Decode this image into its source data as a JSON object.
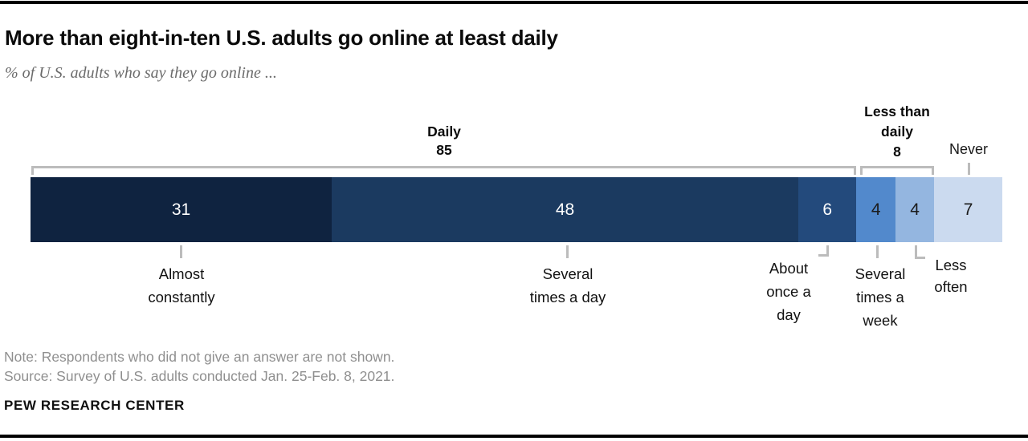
{
  "meta": {
    "title": "More than eight-in-ten U.S. adults go online at least daily",
    "subtitle": "% of U.S. adults who say they go online ...",
    "note": "Note: Respondents who did not give an answer are not shown.",
    "source": "Source: Survey of U.S. adults conducted Jan. 25-Feb. 8, 2021.",
    "brand": "PEW RESEARCH CENTER"
  },
  "chart_data": {
    "type": "bar",
    "variant": "horizontal-stacked-100",
    "title": "More than eight-in-ten U.S. adults go online at least daily",
    "subtitle": "% of U.S. adults who say they go online ...",
    "unit": "percent of U.S. adults",
    "xlim": [
      0,
      100
    ],
    "grid": false,
    "legend": "none",
    "categories": [
      "Almost constantly",
      "Several times a day",
      "About once a day",
      "Several times a week",
      "Less often",
      "Never"
    ],
    "values": [
      31,
      48,
      6,
      4,
      4,
      7
    ],
    "segments": [
      {
        "label": "Almost constantly",
        "value": 31,
        "color": "#0f2340",
        "value_text_color": "#ffffff"
      },
      {
        "label": "Several times a day",
        "value": 48,
        "color": "#1b3a60",
        "value_text_color": "#ffffff"
      },
      {
        "label": "About once a day",
        "value": 6,
        "color": "#234a7c",
        "value_text_color": "#ffffff"
      },
      {
        "label": "Several times a week",
        "value": 4,
        "color": "#5289cc",
        "value_text_color": "#1a1a1a"
      },
      {
        "label": "Less often",
        "value": 4,
        "color": "#94b6e0",
        "value_text_color": "#1a1a1a"
      },
      {
        "label": "Never",
        "value": 7,
        "color": "#cbdaef",
        "value_text_color": "#1a1a1a"
      }
    ],
    "groups": [
      {
        "label": "Daily",
        "value": 85,
        "label_lines": [
          "Daily"
        ],
        "spans": [
          "Almost constantly",
          "Several times a day",
          "About once a day"
        ]
      },
      {
        "label": "Less than daily",
        "value": 8,
        "label_lines": [
          "Less than",
          "daily"
        ],
        "spans": [
          "Several times a week",
          "Less often"
        ]
      },
      {
        "label": "Never",
        "value": null,
        "label_lines": [
          "Never"
        ],
        "spans": [
          "Never"
        ]
      }
    ],
    "captions": [
      {
        "text": "Almost constantly",
        "lines": [
          "Almost",
          "constantly"
        ]
      },
      {
        "text": "Several times a day",
        "lines": [
          "Several",
          "times a day"
        ]
      },
      {
        "text": "About once a day",
        "lines": [
          "About",
          "once a",
          "day"
        ]
      },
      {
        "text": "Several times a week",
        "lines": [
          "Several",
          "times a",
          "week"
        ]
      },
      {
        "text": "Less often",
        "lines": [
          "Less",
          "often"
        ]
      }
    ],
    "annotation_color": "#bcbcbc"
  }
}
